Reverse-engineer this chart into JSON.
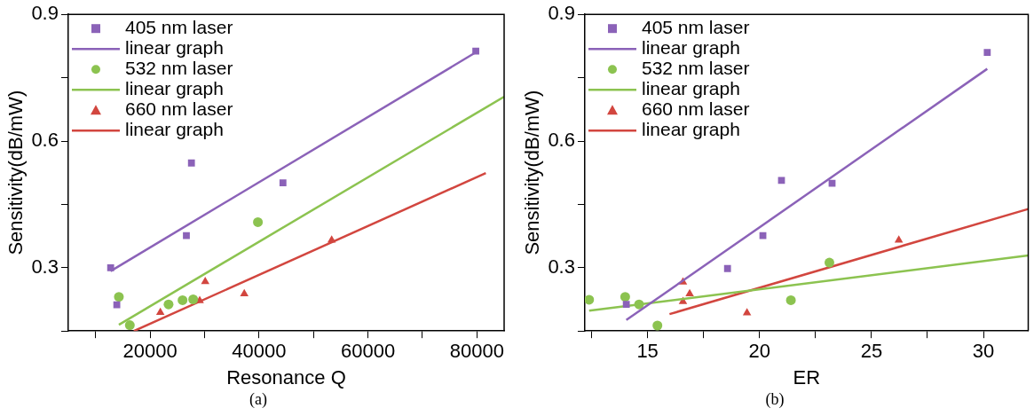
{
  "chart_data": [
    {
      "type": "scatter",
      "xlabel": "Resonance Q",
      "ylabel": "Sensitivity(dB/mW)",
      "annotations": [
        "(a)"
      ],
      "legend": "top left",
      "grid": false,
      "xlim": [
        5000,
        85000
      ],
      "ylim": [
        0.15,
        0.9
      ],
      "xticks": [
        {
          "value": 10000,
          "label": null
        },
        20000,
        {
          "value": 30000,
          "label": null
        },
        40000,
        {
          "value": 50000,
          "label": null
        },
        60000,
        {
          "value": 70000,
          "label": null
        },
        80000
      ],
      "yticks": [
        {
          "value": 0.15,
          "label": null
        },
        0.3,
        {
          "value": 0.45,
          "label": null
        },
        0.6,
        {
          "value": 0.75,
          "label": null
        },
        0.9
      ],
      "series": [
        {
          "name": "405 nm laser",
          "type": "scatter",
          "marker": "square",
          "color": "#8b62b8",
          "x": [
            12770,
            13900,
            26670,
            27600,
            44400,
            79800
          ],
          "values": [
            0.3,
            0.212,
            0.376,
            0.548,
            0.501,
            0.813
          ]
        },
        {
          "name": "linear graph",
          "type": "line",
          "marker": "none",
          "color": "#8b62b8",
          "x": [
            12770,
            79800
          ],
          "values": [
            0.292,
            0.81
          ]
        },
        {
          "name": "532 nm laser",
          "type": "scatter",
          "marker": "circle",
          "color": "#8cc350",
          "x": [
            14280,
            16290,
            23400,
            25970,
            27920,
            39800
          ],
          "values": [
            0.231,
            0.164,
            0.213,
            0.223,
            0.225,
            0.408
          ]
        },
        {
          "name": "linear graph",
          "type": "line",
          "marker": "none",
          "color": "#8cc350",
          "x": [
            14280,
            85000
          ],
          "values": [
            0.165,
            0.705
          ]
        },
        {
          "name": "660 nm laser",
          "type": "scatter",
          "marker": "triangle",
          "color": "#d2463f",
          "x": [
            21890,
            29120,
            30130,
            37300,
            53340
          ],
          "values": [
            0.194,
            0.222,
            0.267,
            0.238,
            0.365
          ]
        },
        {
          "name": "linear graph",
          "type": "line",
          "marker": "none",
          "color": "#d2463f",
          "x": [
            17040,
            81640
          ],
          "values": [
            0.15,
            0.524
          ]
        }
      ]
    },
    {
      "type": "scatter",
      "xlabel": "ER",
      "ylabel": "Sensitivity(dB/mW)",
      "annotations": [
        "(b)"
      ],
      "legend": "top left",
      "grid": false,
      "xlim": [
        12.2,
        32
      ],
      "ylim": [
        0.15,
        0.9
      ],
      "xticks": [
        {
          "value": 12.5,
          "label": null
        },
        15,
        {
          "value": 17.5,
          "label": null
        },
        20,
        {
          "value": 22.5,
          "label": null
        },
        25,
        {
          "value": 27.5,
          "label": null
        },
        30
      ],
      "yticks": [
        {
          "value": 0.15,
          "label": null
        },
        0.3,
        {
          "value": 0.45,
          "label": null
        },
        0.6,
        {
          "value": 0.75,
          "label": null
        },
        0.9
      ],
      "series": [
        {
          "name": "405 nm laser",
          "type": "scatter",
          "marker": "square",
          "color": "#8b62b8",
          "x": [
            14.05,
            18.57,
            20.15,
            20.98,
            23.24,
            30.17
          ],
          "values": [
            0.213,
            0.298,
            0.376,
            0.507,
            0.5,
            0.81
          ]
        },
        {
          "name": "linear graph",
          "type": "line",
          "marker": "none",
          "color": "#8b62b8",
          "x": [
            14.05,
            30.17
          ],
          "values": [
            0.176,
            0.771
          ]
        },
        {
          "name": "532 nm laser",
          "type": "scatter",
          "marker": "circle",
          "color": "#8cc350",
          "x": [
            12.39,
            14.0,
            14.62,
            15.44,
            21.4,
            23.12
          ],
          "values": [
            0.224,
            0.231,
            0.213,
            0.163,
            0.223,
            0.312
          ]
        },
        {
          "name": "linear graph",
          "type": "line",
          "marker": "none",
          "color": "#8cc350",
          "x": [
            12.39,
            32
          ],
          "values": [
            0.198,
            0.329
          ]
        },
        {
          "name": "660 nm laser",
          "type": "scatter",
          "marker": "triangle",
          "color": "#d2463f",
          "x": [
            16.58,
            16.58,
            16.88,
            19.44,
            26.22
          ],
          "values": [
            0.266,
            0.22,
            0.238,
            0.193,
            0.365
          ]
        },
        {
          "name": "linear graph",
          "type": "line",
          "marker": "none",
          "color": "#d2463f",
          "x": [
            15.98,
            32
          ],
          "values": [
            0.19,
            0.439
          ]
        }
      ]
    }
  ]
}
